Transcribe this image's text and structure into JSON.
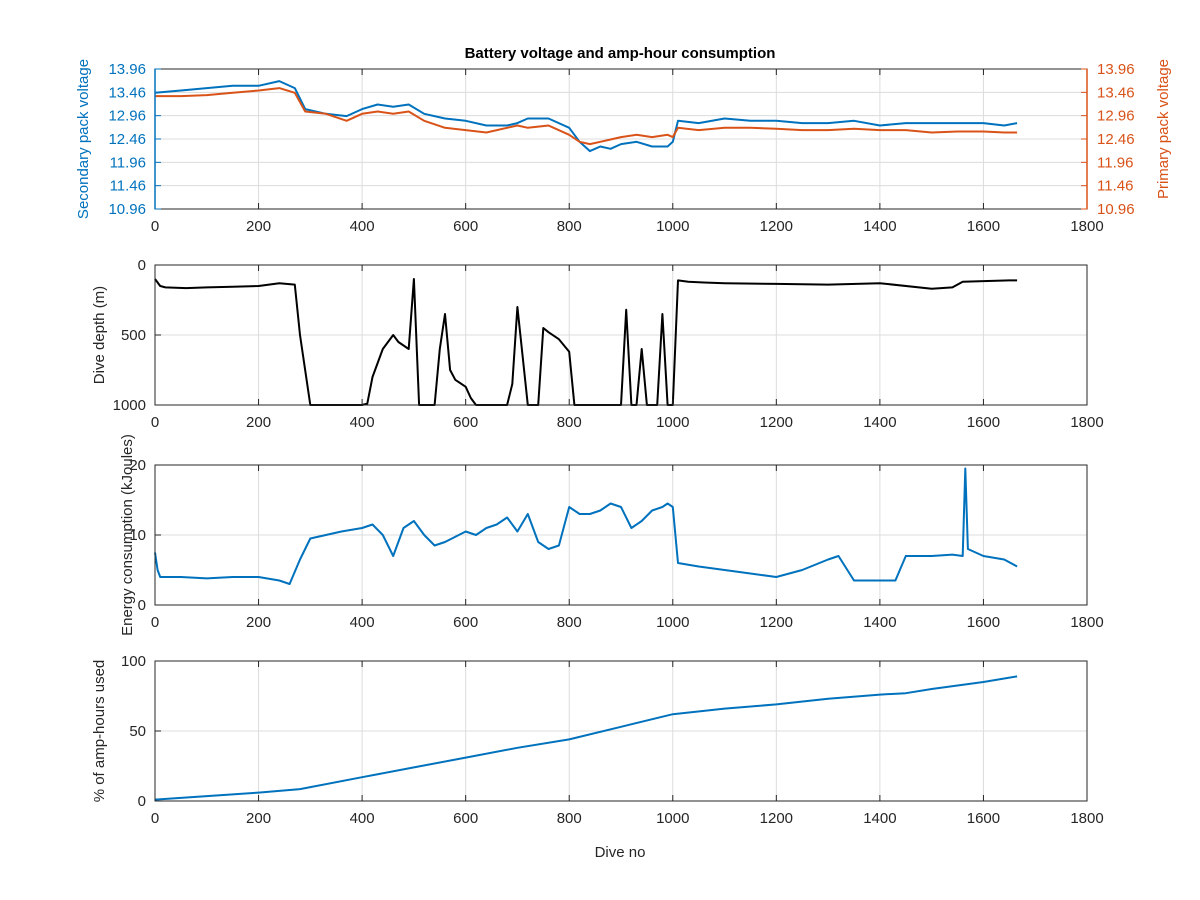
{
  "figure": {
    "title": "Battery voltage and amp-hour consumption",
    "xlabel": "Dive no"
  },
  "colors": {
    "blue": "#0072BD",
    "orange": "#D95319",
    "black": "#000000",
    "grid": "#dcdcdc",
    "axis": "#262626"
  },
  "chart_data": [
    {
      "type": "line",
      "id": "voltage",
      "title": "Battery voltage and amp-hour consumption",
      "xlabel": "",
      "ylabel": "Secondary pack voltage",
      "ylabel_right": "Primary pack voltage",
      "xlim": [
        0,
        1800
      ],
      "ylim": [
        10.96,
        13.96
      ],
      "x_ticks": [
        "0",
        "200",
        "400",
        "600",
        "800",
        "1000",
        "1200",
        "1400",
        "1600",
        "1800"
      ],
      "y_ticks": [
        "10.96",
        "11.46",
        "11.96",
        "12.46",
        "12.96",
        "13.46",
        "13.96"
      ],
      "y_ticks_right": [
        "10.96",
        "11.46",
        "11.96",
        "12.46",
        "12.96",
        "13.46",
        "13.96"
      ],
      "grid": true,
      "series": [
        {
          "axis": "left",
          "color": "#0072BD",
          "x": [
            0,
            50,
            100,
            150,
            200,
            240,
            270,
            290,
            330,
            370,
            400,
            430,
            460,
            490,
            520,
            560,
            600,
            640,
            680,
            700,
            720,
            760,
            800,
            820,
            840,
            860,
            880,
            900,
            930,
            960,
            990,
            1000,
            1010,
            1050,
            1100,
            1150,
            1200,
            1250,
            1300,
            1350,
            1400,
            1450,
            1500,
            1550,
            1600,
            1640,
            1665
          ],
          "y": [
            13.45,
            13.5,
            13.55,
            13.6,
            13.6,
            13.7,
            13.55,
            13.1,
            13.0,
            12.95,
            13.1,
            13.2,
            13.15,
            13.2,
            13.0,
            12.9,
            12.85,
            12.75,
            12.75,
            12.8,
            12.9,
            12.9,
            12.7,
            12.4,
            12.2,
            12.3,
            12.25,
            12.35,
            12.4,
            12.3,
            12.3,
            12.4,
            12.85,
            12.8,
            12.9,
            12.85,
            12.85,
            12.8,
            12.8,
            12.85,
            12.75,
            12.8,
            12.8,
            12.8,
            12.8,
            12.75,
            12.8
          ]
        },
        {
          "axis": "right",
          "color": "#D95319",
          "x": [
            0,
            50,
            100,
            150,
            200,
            240,
            270,
            290,
            330,
            370,
            400,
            430,
            460,
            490,
            520,
            560,
            600,
            640,
            680,
            700,
            720,
            760,
            800,
            820,
            840,
            860,
            880,
            900,
            930,
            960,
            990,
            1000,
            1010,
            1050,
            1100,
            1150,
            1200,
            1250,
            1300,
            1350,
            1400,
            1450,
            1500,
            1550,
            1600,
            1640,
            1665
          ],
          "y": [
            13.38,
            13.38,
            13.4,
            13.45,
            13.5,
            13.55,
            13.45,
            13.05,
            13.0,
            12.85,
            13.0,
            13.05,
            13.0,
            13.05,
            12.85,
            12.7,
            12.65,
            12.6,
            12.7,
            12.75,
            12.7,
            12.75,
            12.55,
            12.4,
            12.35,
            12.4,
            12.45,
            12.5,
            12.55,
            12.5,
            12.55,
            12.5,
            12.7,
            12.65,
            12.7,
            12.7,
            12.68,
            12.65,
            12.65,
            12.68,
            12.65,
            12.65,
            12.6,
            12.62,
            12.62,
            12.6,
            12.6
          ]
        }
      ]
    },
    {
      "type": "line",
      "id": "depth",
      "xlabel": "",
      "ylabel": "Dive depth (m)",
      "xlim": [
        0,
        1800
      ],
      "ylim": [
        0,
        1000
      ],
      "y_reversed": true,
      "x_ticks": [
        "0",
        "200",
        "400",
        "600",
        "800",
        "1000",
        "1200",
        "1400",
        "1600",
        "1800"
      ],
      "y_ticks": [
        "0",
        "500",
        "1000"
      ],
      "grid": true,
      "series": [
        {
          "color": "#000000",
          "x": [
            0,
            10,
            20,
            60,
            100,
            150,
            200,
            240,
            270,
            280,
            300,
            330,
            360,
            400,
            410,
            420,
            440,
            460,
            470,
            490,
            500,
            510,
            520,
            530,
            540,
            550,
            560,
            570,
            580,
            600,
            610,
            620,
            640,
            680,
            690,
            700,
            720,
            740,
            750,
            760,
            780,
            800,
            810,
            820,
            860,
            890,
            900,
            910,
            920,
            930,
            940,
            950,
            970,
            980,
            990,
            1000,
            1010,
            1030,
            1060,
            1100,
            1200,
            1300,
            1400,
            1500,
            1540,
            1560,
            1600,
            1650,
            1665
          ],
          "y": [
            100,
            150,
            160,
            165,
            160,
            155,
            150,
            130,
            140,
            500,
            1000,
            1000,
            1000,
            1000,
            990,
            800,
            600,
            500,
            550,
            600,
            100,
            1000,
            1000,
            1000,
            1000,
            600,
            350,
            750,
            820,
            870,
            950,
            1000,
            1000,
            1000,
            850,
            300,
            1000,
            1000,
            450,
            480,
            530,
            620,
            1000,
            1000,
            1000,
            1000,
            1000,
            320,
            1000,
            1000,
            600,
            1000,
            1000,
            350,
            1000,
            1000,
            110,
            120,
            125,
            130,
            135,
            140,
            130,
            170,
            160,
            120,
            115,
            110,
            110
          ]
        }
      ]
    },
    {
      "type": "line",
      "id": "energy",
      "xlabel": "",
      "ylabel": "Energy consumption (kJoules)",
      "xlim": [
        0,
        1800
      ],
      "ylim": [
        0,
        20
      ],
      "x_ticks": [
        "0",
        "200",
        "400",
        "600",
        "800",
        "1000",
        "1200",
        "1400",
        "1600",
        "1800"
      ],
      "y_ticks": [
        "0",
        "10",
        "20"
      ],
      "grid": true,
      "series": [
        {
          "color": "#0072BD",
          "x": [
            0,
            5,
            10,
            50,
            100,
            150,
            200,
            240,
            260,
            280,
            300,
            330,
            360,
            400,
            420,
            440,
            460,
            480,
            500,
            520,
            540,
            560,
            600,
            620,
            640,
            660,
            680,
            700,
            720,
            740,
            760,
            780,
            800,
            820,
            840,
            860,
            880,
            900,
            920,
            940,
            960,
            980,
            990,
            1000,
            1010,
            1050,
            1100,
            1150,
            1200,
            1250,
            1300,
            1320,
            1350,
            1400,
            1430,
            1450,
            1500,
            1540,
            1560,
            1565,
            1570,
            1600,
            1640,
            1665
          ],
          "y": [
            7.5,
            5.0,
            4.0,
            4.0,
            3.8,
            4.0,
            4.0,
            3.5,
            3.0,
            6.5,
            9.5,
            10.0,
            10.5,
            11.0,
            11.5,
            10.0,
            7.0,
            11.0,
            12.0,
            10.0,
            8.5,
            9.0,
            10.5,
            10.0,
            11.0,
            11.5,
            12.5,
            10.5,
            13.0,
            9.0,
            8.0,
            8.5,
            14.0,
            13.0,
            13.0,
            13.5,
            14.5,
            14.0,
            11.0,
            12.0,
            13.5,
            14.0,
            14.5,
            14.0,
            6.0,
            5.5,
            5.0,
            4.5,
            4.0,
            5.0,
            6.5,
            7.0,
            3.5,
            3.5,
            3.5,
            7.0,
            7.0,
            7.2,
            7.0,
            19.5,
            8.0,
            7.0,
            6.5,
            5.5
          ]
        }
      ]
    },
    {
      "type": "line",
      "id": "amphours",
      "xlabel": "Dive no",
      "ylabel": "% of amp-hours used",
      "xlim": [
        0,
        1800
      ],
      "ylim": [
        0,
        100
      ],
      "x_ticks": [
        "0",
        "200",
        "400",
        "600",
        "800",
        "1000",
        "1200",
        "1400",
        "1600",
        "1800"
      ],
      "y_ticks": [
        "0",
        "50",
        "100"
      ],
      "grid": true,
      "series": [
        {
          "color": "#0072BD",
          "x": [
            0,
            100,
            200,
            280,
            400,
            500,
            600,
            700,
            800,
            900,
            1000,
            1100,
            1200,
            1300,
            1400,
            1450,
            1500,
            1600,
            1665
          ],
          "y": [
            1,
            3.5,
            6,
            8.5,
            17,
            24,
            31,
            38,
            44,
            53,
            62,
            66,
            69,
            73,
            76,
            77,
            80,
            85,
            89
          ]
        }
      ]
    }
  ]
}
